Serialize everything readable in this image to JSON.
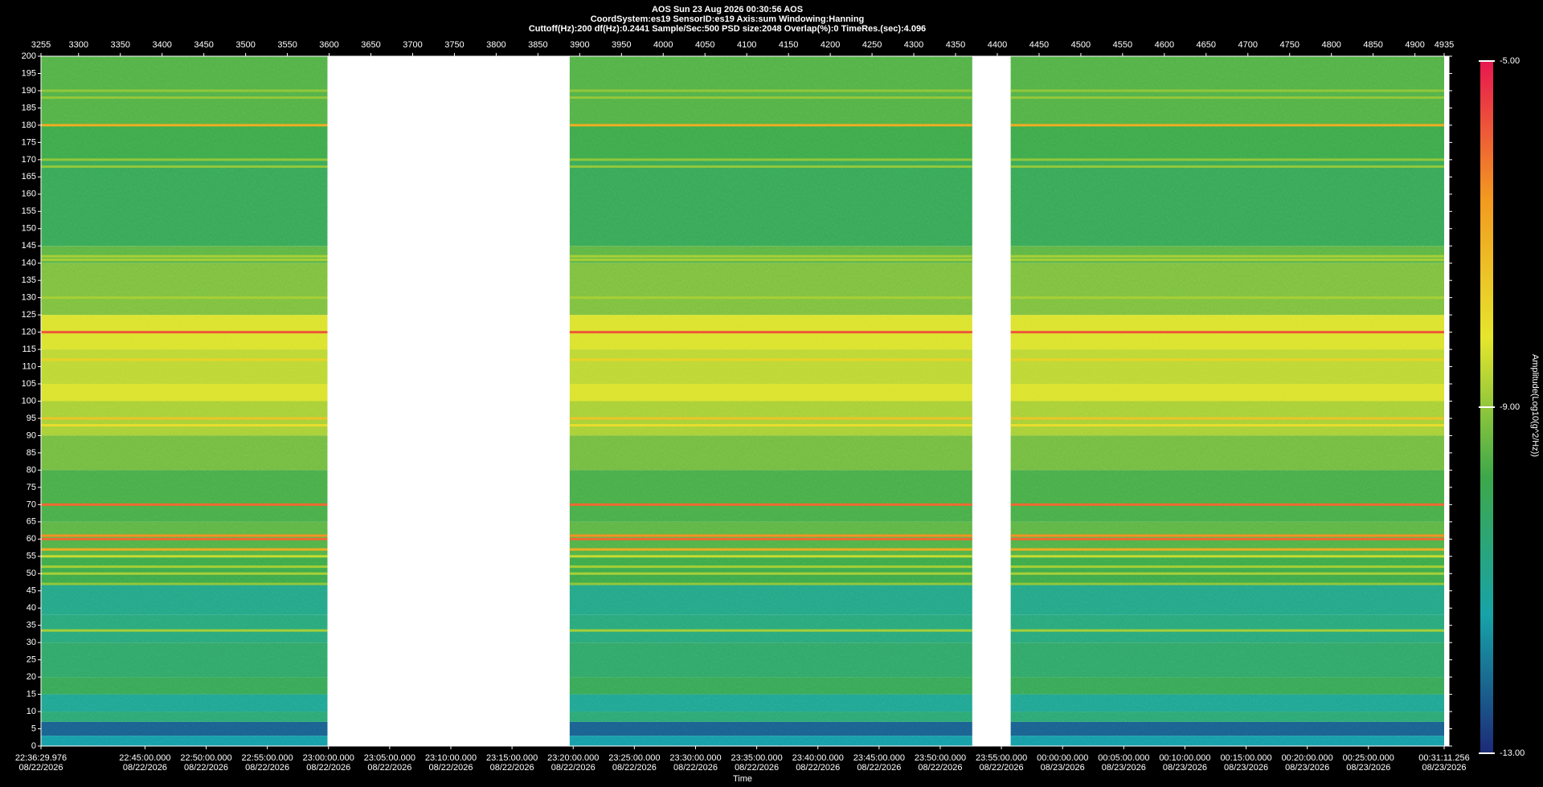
{
  "chart_data": {
    "type": "spectrogram",
    "title": "AOS  Sun 23 Aug 2026 00:30:56  AOS",
    "subtitle": "CoordSystem:es19   SensorID:es19   Axis:sum   Windowing:Hanning",
    "settings_line": "Cuttoff(Hz):200     df(Hz):0.2441     Sample/Sec:500     PSD size:2048     Overlap(%):0     TimeRes.(sec):4.096",
    "xlabel": "Time",
    "colorbar_label": "Amplitude(Log10(g^2/Hz))",
    "xlim": [
      3255,
      4935
    ],
    "xticks": [
      3255,
      3300,
      3350,
      3400,
      3450,
      3500,
      3550,
      3600,
      3650,
      3700,
      3750,
      3800,
      3850,
      3900,
      3950,
      4000,
      4050,
      4100,
      4150,
      4200,
      4250,
      4300,
      4350,
      4400,
      4450,
      4500,
      4550,
      4600,
      4650,
      4700,
      4750,
      4800,
      4850,
      4900,
      4935
    ],
    "ylim": [
      0,
      200
    ],
    "yticks": [
      0,
      5,
      10,
      15,
      20,
      25,
      30,
      35,
      40,
      45,
      50,
      55,
      60,
      65,
      70,
      75,
      80,
      85,
      90,
      95,
      100,
      105,
      110,
      115,
      120,
      125,
      130,
      135,
      140,
      145,
      150,
      155,
      160,
      165,
      170,
      175,
      180,
      185,
      190,
      195,
      200
    ],
    "time_ticks": [
      {
        "time": "22:36:29.976",
        "date": "08/22/2026"
      },
      {
        "time": "22:45:00.000",
        "date": "08/22/2026"
      },
      {
        "time": "22:50:00.000",
        "date": "08/22/2026"
      },
      {
        "time": "22:55:00.000",
        "date": "08/22/2026"
      },
      {
        "time": "23:00:00.000",
        "date": "08/22/2026"
      },
      {
        "time": "23:05:00.000",
        "date": "08/22/2026"
      },
      {
        "time": "23:10:00.000",
        "date": "08/22/2026"
      },
      {
        "time": "23:15:00.000",
        "date": "08/22/2026"
      },
      {
        "time": "23:20:00.000",
        "date": "08/22/2026"
      },
      {
        "time": "23:25:00.000",
        "date": "08/22/2026"
      },
      {
        "time": "23:30:00.000",
        "date": "08/22/2026"
      },
      {
        "time": "23:35:00.000",
        "date": "08/22/2026"
      },
      {
        "time": "23:40:00.000",
        "date": "08/22/2026"
      },
      {
        "time": "23:45:00.000",
        "date": "08/22/2026"
      },
      {
        "time": "23:50:00.000",
        "date": "08/22/2026"
      },
      {
        "time": "23:55:00.000",
        "date": "08/22/2026"
      },
      {
        "time": "00:00:00.000",
        "date": "08/23/2026"
      },
      {
        "time": "00:05:00.000",
        "date": "08/23/2026"
      },
      {
        "time": "00:10:00.000",
        "date": "08/23/2026"
      },
      {
        "time": "00:15:00.000",
        "date": "08/23/2026"
      },
      {
        "time": "00:20:00.000",
        "date": "08/23/2026"
      },
      {
        "time": "00:25:00.000",
        "date": "08/23/2026"
      },
      {
        "time": "00:31:11.256",
        "date": "08/23/2026"
      }
    ],
    "segments": [
      [
        3255,
        3598
      ],
      [
        3888,
        4370
      ],
      [
        4416,
        4935
      ]
    ],
    "bands": {
      "edges": [
        0,
        3,
        7,
        10,
        15,
        20,
        30,
        38,
        47,
        55,
        60,
        65,
        80,
        90,
        100,
        105,
        115,
        125,
        140,
        145,
        170,
        180,
        200
      ],
      "values": [
        -11.5,
        -12.3,
        -10.5,
        -11,
        -10,
        -10.3,
        -10.6,
        -10.8,
        -9.8,
        -9.6,
        -9.5,
        -9.7,
        -9.3,
        -8.8,
        -8.3,
        -8.6,
        -8.3,
        -9.2,
        -9.5,
        -10,
        -9.8,
        -9.6
      ]
    },
    "lines": {
      "freqs": [
        120,
        70,
        60,
        61,
        57,
        55,
        52,
        50,
        47,
        33.5,
        180,
        95,
        93,
        112,
        141,
        142,
        130,
        168,
        170,
        188,
        190
      ],
      "values": [
        -5.8,
        -6,
        -6,
        -6.5,
        -7,
        -8.5,
        -8.8,
        -8.8,
        -9,
        -8.8,
        -7,
        -7.5,
        -8,
        -7.8,
        -8.8,
        -8.8,
        -8.8,
        -9,
        -9,
        -9,
        -9
      ]
    },
    "clim": [
      -13,
      -5
    ],
    "cticks": [
      {
        "value": -13,
        "label": "-13.00"
      },
      {
        "value": -9,
        "label": "-9.00"
      },
      {
        "value": -5,
        "label": "-5.00"
      }
    ],
    "colormap": [
      "#1c2a78",
      "#17a3a8",
      "#3da84a",
      "#e6e62c",
      "#f39a20",
      "#e8164f"
    ],
    "gap_color": "#ffffff"
  }
}
